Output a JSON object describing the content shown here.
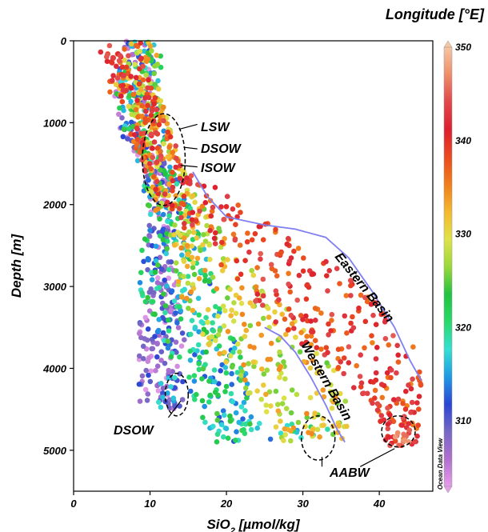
{
  "chart_data": {
    "type": "scatter",
    "xlabel_main": "SiO",
    "xlabel_sub": "2",
    "xlabel_units": " [µmol/kg]",
    "ylabel": "Depth [m]",
    "colorbar_label": "Longitude [°E]",
    "watermark": "Ocean Data View",
    "xlim": [
      0,
      47
    ],
    "ylim": [
      5500,
      0
    ],
    "x_ticks": [
      "0",
      "10",
      "20",
      "30",
      "40"
    ],
    "y_ticks": [
      "0",
      "1000",
      "2000",
      "3000",
      "4000",
      "5000"
    ],
    "colorbar_range": [
      303,
      350
    ],
    "colorbar_ticks": [
      "310",
      "320",
      "330",
      "340",
      "350"
    ],
    "colorscale": [
      "#e59ce9",
      "#b06fd0",
      "#7667c4",
      "#2a45d6",
      "#1f9ae4",
      "#35dfd2",
      "#29d96a",
      "#22c23e",
      "#9ad83a",
      "#dfe24a",
      "#f4b82f",
      "#f07d1b",
      "#ea4a1f",
      "#dd1f2f",
      "#e0474a",
      "#ef8d69",
      "#f6c6a3"
    ],
    "annotations": [
      "LSW",
      "DSOW",
      "ISOW",
      "Eastern Basin",
      "Western Basin",
      "DSOW",
      "AABW"
    ],
    "series_bands": [
      {
        "name": "",
        "lon": [
          303,
          312
        ],
        "x_base": [
          8.5,
          8.0,
          7.5,
          10.5,
          11.5,
          11.5,
          11.5,
          11.5,
          11.5,
          11.5,
          11.5,
          11.5
        ],
        "x_spread": [
          1.6,
          2.5,
          2.5,
          1.5,
          1.6,
          1.8,
          2.5,
          3.0,
          3.0,
          3.0,
          3.0,
          3.0
        ],
        "depth": [
          0,
          500,
          1000,
          1500,
          2000,
          2500,
          3000,
          3500,
          4000,
          4500,
          5000,
          5500
        ]
      },
      {
        "name": "",
        "lon": [
          312,
          325
        ],
        "x_base": [
          9.5,
          8.5,
          9.0,
          10.5,
          12.5,
          13.0,
          13.5,
          15.5,
          18.0,
          20.0,
          21.0,
          22.0
        ],
        "x_spread": [
          2.0,
          3.0,
          3.0,
          2.0,
          3.0,
          4.0,
          5.0,
          5.0,
          4.5,
          3.5,
          3.0,
          3.0
        ],
        "depth": [
          0,
          500,
          1000,
          1500,
          2000,
          2500,
          3000,
          3500,
          4000,
          4500,
          5000,
          5500
        ]
      },
      {
        "name": "",
        "lon": [
          325,
          335
        ],
        "x_base": [
          9.0,
          8.0,
          10.0,
          11.5,
          13.5,
          16.5,
          19.5,
          23.0,
          27.0,
          30.0,
          32.0,
          33.0
        ],
        "x_spread": [
          2.5,
          3.0,
          2.5,
          2.5,
          3.5,
          4.0,
          6.0,
          7.0,
          7.0,
          6.0,
          5.0,
          5.0
        ],
        "depth": [
          0,
          500,
          1000,
          1500,
          2000,
          2500,
          3000,
          3500,
          4000,
          4500,
          5000,
          5500
        ]
      },
      {
        "name": "",
        "lon": [
          335,
          345
        ],
        "x_base": [
          6.0,
          7.0,
          9.5,
          11.5,
          17.0,
          23.0,
          30.0,
          35.0,
          40.0,
          42.5,
          43.0,
          43.0
        ],
        "x_spread": [
          3.0,
          3.0,
          2.5,
          3.0,
          5.0,
          7.0,
          8.0,
          8.0,
          6.0,
          3.0,
          2.0,
          2.0
        ],
        "depth": [
          0,
          500,
          1000,
          1500,
          2000,
          2500,
          3000,
          3500,
          4000,
          4500,
          5000,
          5500
        ]
      }
    ],
    "depth_max_by_basin": [
      4500,
      4900,
      4900,
      4950
    ]
  }
}
